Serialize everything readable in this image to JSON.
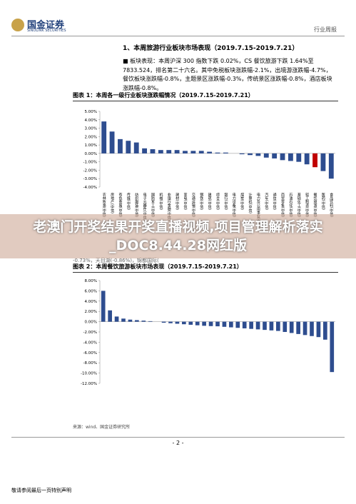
{
  "header": {
    "logo": "国金证券",
    "logo_sub": "SINOLINK SECURITIES",
    "tag": "行业周报"
  },
  "section_title": "1、本周旅游行业板块市场表现（2019.7.15-2019.7.21）",
  "paragraph": "■ 板块表现：本周沪深 300 指数下跌 0.02%，CS 餐饮旅游下跌 1.64%至 7833.524，排名第二十六名。其中免税板块涨跌幅-2.1%，出境游涨跌幅-4.7%，餐饮板块涨跌幅-0.8%，主题景区涨跌幅-0.3%，传统景区涨跌幅-0.8%，酒店板块涨跌幅-0.8%。",
  "figures": [
    {
      "caption": "图表 1：本周各一级行业板块涨跌幅情况（2019.7.15-2019.7.21）",
      "chart": {
        "type": "bar",
        "color": "#2e4d8f",
        "highlight_category": "餐饮旅游(中信)",
        "highlight_color": "#c00000",
        "categories": [
          "农林牧渔(中信)",
          "房地产(中信)",
          "有色金属(中信)",
          "传媒(中信)",
          "纺织服装(中信)",
          "电子元器件(中信)",
          "国防军工(中信)",
          "机械(中信)",
          "非银行金融(中信)",
          "建材(中信)",
          "家电(中信)",
          "交通运输(中信)",
          "钢铁(中信)",
          "建筑(中信)",
          "综合(中信)",
          "银行(中信)",
          "电力设备(中信)",
          "煤炭(中信)",
          "计算机(中信)",
          "电力及公用事业(中信)",
          "汽车(中信)",
          "通信(中信)",
          "商贸零售(中信)",
          "石油石化(中信)",
          "基础化工(中信)",
          "轻工制造(中信)",
          "餐饮旅游(中信)",
          "医药(中信)",
          "食品饮料(中信)"
        ],
        "values": [
          3.8,
          2.6,
          1.7,
          1.5,
          1.3,
          0.6,
          0.5,
          0.4,
          0.4,
          0.4,
          0.3,
          0.3,
          0.3,
          0.2,
          0.1,
          0.1,
          0.0,
          -0.1,
          -0.2,
          -0.3,
          -0.5,
          -0.6,
          -0.8,
          -0.9,
          -1.0,
          -1.3,
          -1.64,
          -2.1,
          -3.0
        ],
        "ylim": [
          -4,
          5
        ],
        "yticks": [
          {
            "value": -4,
            "label": "-4.00%"
          },
          {
            "value": -3,
            "label": "-3.00%"
          },
          {
            "value": -2,
            "label": "-2.00%"
          },
          {
            "value": -1,
            "label": "-1.00%"
          },
          {
            "value": 0,
            "label": "0.00%"
          },
          {
            "value": 1,
            "label": "1.00%"
          },
          {
            "value": 2,
            "label": "2.00%"
          },
          {
            "value": 3,
            "label": "3.00%"
          },
          {
            "value": 4,
            "label": "4.00%"
          },
          {
            "value": 5,
            "label": "5.00%"
          }
        ]
      }
    },
    {
      "caption": "图表 2：本周餐饮旅游板块市场表现（2019.7.15-2019.7.21）",
      "chart": {
        "type": "bar",
        "color": "#2e4d8f",
        "categories": [
          null,
          null,
          null,
          null,
          null,
          null,
          null,
          null,
          null,
          null,
          null,
          null,
          null,
          null,
          null,
          null,
          null,
          null,
          null,
          null,
          null,
          null,
          null,
          null,
          null,
          null,
          null,
          null,
          null,
          null,
          null,
          null,
          null,
          null,
          null
        ],
        "values": [
          6.0,
          2.2,
          1.0,
          0.6,
          0.4,
          0.3,
          0.2,
          0.1,
          0,
          -0.2,
          -0.3,
          -0.4,
          -0.5,
          -0.6,
          -0.7,
          -0.8,
          -0.86,
          -0.9,
          -1.0,
          -1.1,
          -1.2,
          -1.3,
          -1.4,
          -1.5,
          -1.6,
          -1.7,
          -1.8,
          -2.0,
          -2.2,
          -2.4,
          -2.6,
          -2.8,
          -3.0,
          -3.5,
          -9.8
        ],
        "ylim": [
          -12,
          8
        ],
        "yticks": [
          {
            "value": -12,
            "label": "-12.00%"
          },
          {
            "value": -10,
            "label": "-10.00%"
          },
          {
            "value": -8,
            "label": "-8.00%"
          },
          {
            "value": -6,
            "label": "-6.00%"
          },
          {
            "value": -4,
            "label": "-4.00%"
          },
          {
            "value": -2,
            "label": "-2.00%"
          },
          {
            "value": 0,
            "label": "0.00%"
          },
          {
            "value": 2,
            "label": "2.00%"
          },
          {
            "value": 4,
            "label": "4.00%"
          },
          {
            "value": 6,
            "label": "6.00%"
          },
          {
            "value": 8,
            "label": "8.00%"
          }
        ]
      }
    }
  ],
  "hidden_line": "-0.73%，天目湖(-0.86%)，锦都国际(",
  "source": "来源：wind、国金证券研究所",
  "overlay": "老澳门开奖结果开奖直播视频,项目管理解析落实_DOC8.44.28网红版",
  "footer": {
    "page": "- 2 -",
    "note": "敬请参阅最后一页特别声明"
  }
}
